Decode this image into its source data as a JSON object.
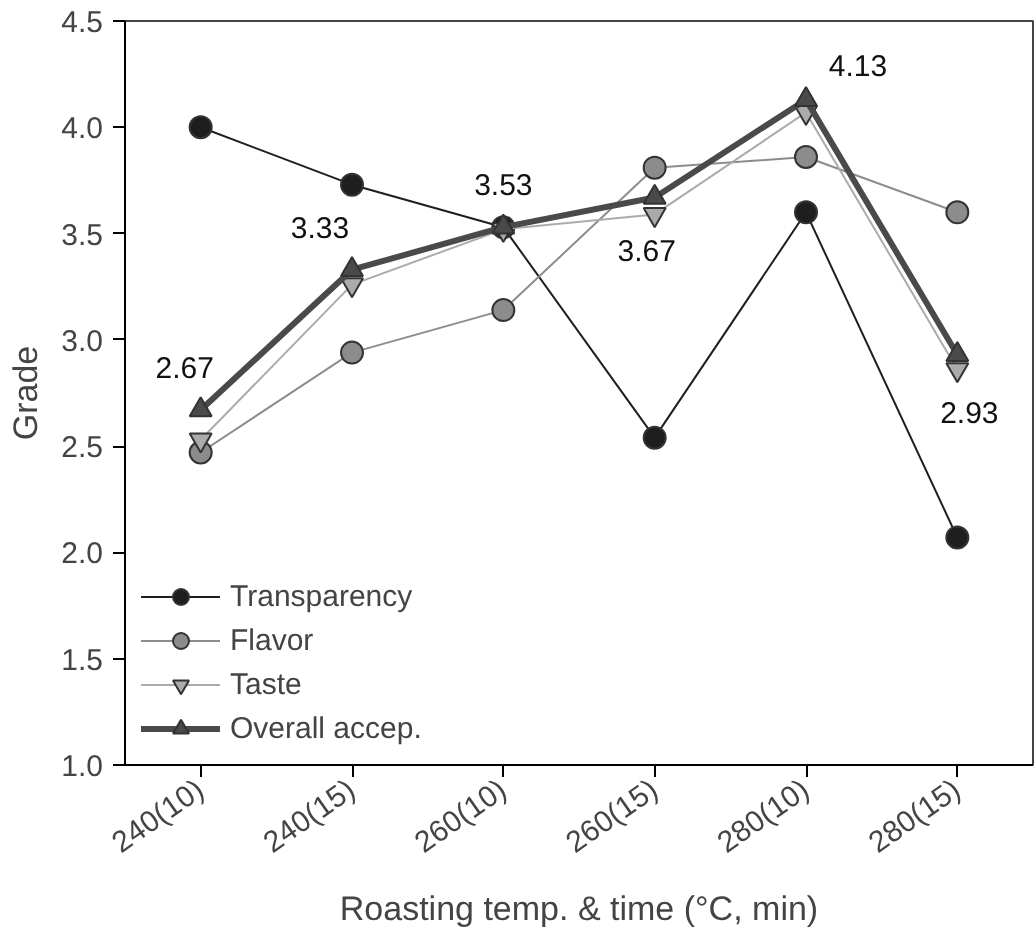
{
  "chart_data": {
    "type": "line",
    "xlabel": "Roasting temp. & time (°C, min)",
    "ylabel": "Grade",
    "categories": [
      "240(10)",
      "240(15)",
      "260(10)",
      "260(15)",
      "280(10)",
      "280(15)"
    ],
    "ylim": [
      1.0,
      4.5
    ],
    "yticks": [
      {
        "value": 1.0,
        "label": "1.0"
      },
      {
        "value": 1.5,
        "label": "1.5"
      },
      {
        "value": 2.0,
        "label": "2.0"
      },
      {
        "value": 2.5,
        "label": "2.5"
      },
      {
        "value": 3.0,
        "label": "3.0"
      },
      {
        "value": 3.5,
        "label": "3.5"
      },
      {
        "value": 4.0,
        "label": "4.0"
      },
      {
        "value": 4.5,
        "label": "4.5"
      }
    ],
    "grid": false,
    "legend": "bottom left",
    "series": [
      {
        "name": "Transparency",
        "color": "#1e1e1e",
        "marker": "circle",
        "values": [
          4.0,
          3.73,
          3.53,
          2.54,
          3.6,
          2.07
        ]
      },
      {
        "name": "Flavor",
        "color": "#8c8c8c",
        "marker": "circle",
        "values": [
          2.47,
          2.94,
          3.14,
          3.81,
          3.86,
          3.6
        ]
      },
      {
        "name": "Taste",
        "color": "#ababab",
        "marker": "triangle_down",
        "values": [
          2.53,
          3.26,
          3.52,
          3.59,
          4.07,
          2.86
        ]
      },
      {
        "name": "Overall accep.",
        "color": "#4a4a4a",
        "marker": "triangle",
        "values": [
          2.67,
          3.33,
          3.53,
          3.67,
          4.13,
          2.93
        ],
        "value_labels": [
          "2.67",
          "3.33",
          "3.53",
          "3.67",
          "4.13",
          "2.93"
        ]
      }
    ]
  }
}
